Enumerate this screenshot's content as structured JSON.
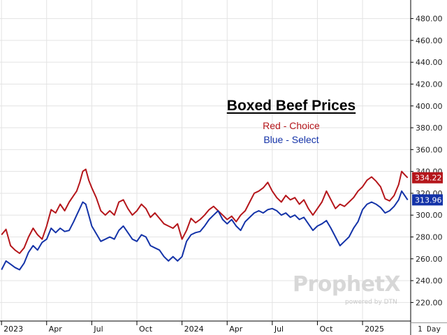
{
  "chart_data": {
    "type": "line",
    "title": "Boxed Beef Prices",
    "legend": [
      {
        "label": "Red - Choice",
        "color": "#b5161b"
      },
      {
        "label": "Blue - Select",
        "color": "#1433a8"
      }
    ],
    "x_ticks": [
      "2023",
      "Apr",
      "Jul",
      "Oct",
      "2024",
      "Apr",
      "Jul",
      "Oct",
      "2025"
    ],
    "x_tick_months": [
      0,
      3,
      6,
      9,
      12,
      15,
      18,
      21,
      24
    ],
    "x_range_months": [
      -0.1,
      27.2
    ],
    "y_ticks": [
      220,
      240,
      260,
      280,
      300,
      320,
      340,
      360,
      380,
      400,
      420,
      440,
      460,
      480
    ],
    "ylim": [
      203,
      497
    ],
    "axis_side": "right",
    "timeframe": "1 Day",
    "series": [
      {
        "name": "Choice",
        "color": "#b5161b",
        "last_value": "334.22",
        "points": [
          [
            0,
            282
          ],
          [
            0.3,
            287
          ],
          [
            0.6,
            272
          ],
          [
            0.9,
            268
          ],
          [
            1.2,
            265
          ],
          [
            1.5,
            270
          ],
          [
            1.8,
            280
          ],
          [
            2.1,
            288
          ],
          [
            2.4,
            282
          ],
          [
            2.7,
            278
          ],
          [
            3.0,
            290
          ],
          [
            3.3,
            305
          ],
          [
            3.6,
            302
          ],
          [
            3.9,
            310
          ],
          [
            4.2,
            304
          ],
          [
            4.5,
            312
          ],
          [
            4.8,
            318
          ],
          [
            5.0,
            322
          ],
          [
            5.2,
            330
          ],
          [
            5.4,
            340
          ],
          [
            5.6,
            342
          ],
          [
            5.8,
            332
          ],
          [
            6.0,
            325
          ],
          [
            6.3,
            316
          ],
          [
            6.6,
            304
          ],
          [
            6.9,
            300
          ],
          [
            7.2,
            304
          ],
          [
            7.5,
            300
          ],
          [
            7.8,
            312
          ],
          [
            8.1,
            314
          ],
          [
            8.4,
            306
          ],
          [
            8.7,
            300
          ],
          [
            9.0,
            304
          ],
          [
            9.3,
            310
          ],
          [
            9.6,
            306
          ],
          [
            9.9,
            298
          ],
          [
            10.2,
            302
          ],
          [
            10.5,
            297
          ],
          [
            10.8,
            292
          ],
          [
            11.1,
            290
          ],
          [
            11.4,
            288
          ],
          [
            11.7,
            292
          ],
          [
            12.0,
            278
          ],
          [
            12.3,
            286
          ],
          [
            12.6,
            297
          ],
          [
            12.9,
            293
          ],
          [
            13.2,
            296
          ],
          [
            13.5,
            300
          ],
          [
            13.8,
            305
          ],
          [
            14.1,
            308
          ],
          [
            14.4,
            304
          ],
          [
            14.7,
            300
          ],
          [
            15.0,
            296
          ],
          [
            15.3,
            299
          ],
          [
            15.6,
            294
          ],
          [
            15.9,
            300
          ],
          [
            16.2,
            304
          ],
          [
            16.5,
            312
          ],
          [
            16.8,
            320
          ],
          [
            17.1,
            322
          ],
          [
            17.4,
            325
          ],
          [
            17.7,
            330
          ],
          [
            18.0,
            322
          ],
          [
            18.3,
            316
          ],
          [
            18.6,
            312
          ],
          [
            18.9,
            318
          ],
          [
            19.2,
            314
          ],
          [
            19.5,
            316
          ],
          [
            19.8,
            310
          ],
          [
            20.1,
            314
          ],
          [
            20.4,
            306
          ],
          [
            20.7,
            300
          ],
          [
            21.0,
            306
          ],
          [
            21.3,
            312
          ],
          [
            21.6,
            322
          ],
          [
            21.9,
            314
          ],
          [
            22.2,
            306
          ],
          [
            22.5,
            310
          ],
          [
            22.8,
            308
          ],
          [
            23.1,
            312
          ],
          [
            23.4,
            316
          ],
          [
            23.7,
            322
          ],
          [
            24.0,
            326
          ],
          [
            24.3,
            332
          ],
          [
            24.6,
            335
          ],
          [
            24.9,
            331
          ],
          [
            25.2,
            326
          ],
          [
            25.5,
            315
          ],
          [
            25.8,
            313
          ],
          [
            26.1,
            318
          ],
          [
            26.4,
            328
          ],
          [
            26.6,
            340
          ],
          [
            26.8,
            337
          ],
          [
            27.0,
            334.22
          ]
        ]
      },
      {
        "name": "Select",
        "color": "#1433a8",
        "last_value": "313.96",
        "points": [
          [
            0,
            250
          ],
          [
            0.3,
            258
          ],
          [
            0.6,
            255
          ],
          [
            0.9,
            252
          ],
          [
            1.2,
            250
          ],
          [
            1.5,
            256
          ],
          [
            1.8,
            266
          ],
          [
            2.1,
            272
          ],
          [
            2.4,
            268
          ],
          [
            2.7,
            275
          ],
          [
            3.0,
            278
          ],
          [
            3.3,
            288
          ],
          [
            3.6,
            284
          ],
          [
            3.9,
            288
          ],
          [
            4.2,
            285
          ],
          [
            4.5,
            286
          ],
          [
            4.8,
            294
          ],
          [
            5.0,
            300
          ],
          [
            5.2,
            306
          ],
          [
            5.4,
            312
          ],
          [
            5.6,
            310
          ],
          [
            5.8,
            300
          ],
          [
            6.0,
            290
          ],
          [
            6.3,
            283
          ],
          [
            6.6,
            276
          ],
          [
            6.9,
            278
          ],
          [
            7.2,
            280
          ],
          [
            7.5,
            278
          ],
          [
            7.8,
            286
          ],
          [
            8.1,
            290
          ],
          [
            8.4,
            284
          ],
          [
            8.7,
            278
          ],
          [
            9.0,
            276
          ],
          [
            9.3,
            282
          ],
          [
            9.6,
            280
          ],
          [
            9.9,
            272
          ],
          [
            10.2,
            270
          ],
          [
            10.5,
            268
          ],
          [
            10.8,
            262
          ],
          [
            11.1,
            258
          ],
          [
            11.4,
            262
          ],
          [
            11.7,
            258
          ],
          [
            12.0,
            262
          ],
          [
            12.3,
            276
          ],
          [
            12.6,
            282
          ],
          [
            12.9,
            284
          ],
          [
            13.2,
            285
          ],
          [
            13.5,
            290
          ],
          [
            13.8,
            296
          ],
          [
            14.1,
            300
          ],
          [
            14.4,
            304
          ],
          [
            14.7,
            296
          ],
          [
            15.0,
            292
          ],
          [
            15.3,
            296
          ],
          [
            15.6,
            290
          ],
          [
            15.9,
            286
          ],
          [
            16.2,
            294
          ],
          [
            16.5,
            298
          ],
          [
            16.8,
            302
          ],
          [
            17.1,
            304
          ],
          [
            17.4,
            302
          ],
          [
            17.7,
            305
          ],
          [
            18.0,
            306
          ],
          [
            18.3,
            304
          ],
          [
            18.6,
            300
          ],
          [
            18.9,
            302
          ],
          [
            19.2,
            298
          ],
          [
            19.5,
            300
          ],
          [
            19.8,
            296
          ],
          [
            20.1,
            298
          ],
          [
            20.4,
            292
          ],
          [
            20.7,
            286
          ],
          [
            21.0,
            290
          ],
          [
            21.3,
            292
          ],
          [
            21.6,
            295
          ],
          [
            21.9,
            288
          ],
          [
            22.2,
            280
          ],
          [
            22.5,
            272
          ],
          [
            22.8,
            276
          ],
          [
            23.1,
            280
          ],
          [
            23.4,
            288
          ],
          [
            23.7,
            294
          ],
          [
            24.0,
            305
          ],
          [
            24.3,
            310
          ],
          [
            24.6,
            312
          ],
          [
            24.9,
            310
          ],
          [
            25.2,
            307
          ],
          [
            25.5,
            302
          ],
          [
            25.8,
            304
          ],
          [
            26.1,
            308
          ],
          [
            26.4,
            314
          ],
          [
            26.6,
            322
          ],
          [
            26.8,
            318
          ],
          [
            27.0,
            313.96
          ]
        ]
      }
    ]
  },
  "watermark": {
    "brand": "ProphetX",
    "sub": "powered by DTN"
  }
}
